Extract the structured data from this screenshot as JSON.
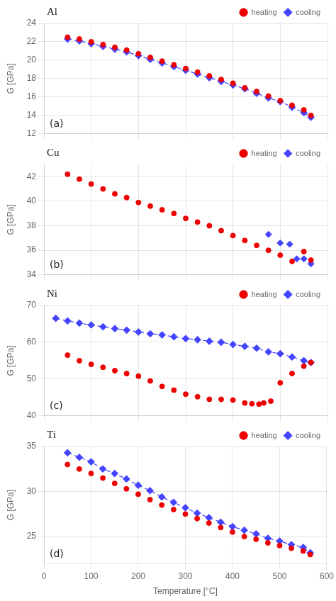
{
  "chart_data": [
    {
      "type": "scatter",
      "annotations": [
        "Al",
        "(a)"
      ],
      "ylabel": "G [GPa]",
      "xlim": [
        0,
        600
      ],
      "xticks": [
        0,
        100,
        200,
        300,
        400,
        500,
        600
      ],
      "ylim": [
        12,
        24
      ],
      "yticks": [
        12,
        14,
        16,
        18,
        20,
        22,
        24
      ],
      "grid": true,
      "legend": "upper right",
      "tick_labels": "y",
      "series": [
        {
          "name": "heating",
          "type": "scatter",
          "marker": "circle",
          "color": "#EE0000",
          "x": [
            50,
            75,
            100,
            125,
            150,
            175,
            200,
            225,
            250,
            275,
            300,
            325,
            350,
            375,
            400,
            425,
            450,
            475,
            500,
            525,
            550,
            565
          ],
          "values": [
            22.5,
            22.3,
            22.0,
            21.7,
            21.4,
            21.1,
            20.7,
            20.3,
            19.9,
            19.5,
            19.1,
            18.7,
            18.3,
            17.9,
            17.5,
            17.0,
            16.6,
            16.1,
            15.6,
            15.1,
            14.6,
            14.0
          ]
        },
        {
          "name": "cooling",
          "type": "line",
          "marker": "diamond",
          "line_style": "dashed",
          "color": "#4444FF",
          "x": [
            50,
            75,
            100,
            125,
            150,
            175,
            200,
            225,
            250,
            275,
            300,
            325,
            350,
            375,
            400,
            425,
            450,
            475,
            500,
            525,
            550,
            565
          ],
          "values": [
            22.3,
            22.1,
            21.8,
            21.5,
            21.2,
            20.9,
            20.5,
            20.1,
            19.7,
            19.3,
            18.9,
            18.5,
            18.1,
            17.7,
            17.3,
            16.9,
            16.4,
            15.9,
            15.5,
            14.9,
            14.3,
            13.8
          ]
        }
      ]
    },
    {
      "type": "scatter",
      "annotations": [
        "Cu",
        "(b)"
      ],
      "ylabel": "G [GPa]",
      "xlim": [
        0,
        600
      ],
      "xticks": [
        0,
        100,
        200,
        300,
        400,
        500,
        600
      ],
      "ylim": [
        34,
        43
      ],
      "yticks": [
        34,
        36,
        38,
        40,
        42
      ],
      "grid": true,
      "legend": "upper right",
      "tick_labels": "y",
      "series": [
        {
          "name": "heating",
          "type": "scatter",
          "marker": "circle",
          "color": "#EE0000",
          "x": [
            50,
            75,
            100,
            125,
            150,
            175,
            200,
            225,
            250,
            275,
            300,
            325,
            350,
            375,
            400,
            425,
            450,
            475,
            500,
            525,
            550,
            565
          ],
          "values": [
            42.2,
            41.8,
            41.4,
            41.0,
            40.6,
            40.3,
            39.9,
            39.6,
            39.3,
            39.0,
            38.6,
            38.3,
            38.0,
            37.6,
            37.2,
            36.8,
            36.4,
            36.0,
            35.6,
            35.1,
            35.9,
            35.2
          ]
        },
        {
          "name": "cooling",
          "type": "scatter",
          "marker": "diamond",
          "color": "#4444FF",
          "x": [
            475,
            500,
            520,
            535,
            550,
            565
          ],
          "values": [
            37.3,
            36.6,
            36.5,
            35.3,
            35.3,
            34.9
          ]
        }
      ]
    },
    {
      "type": "scatter",
      "annotations": [
        "Ni",
        "(c)"
      ],
      "ylabel": "G [GPa]",
      "xlim": [
        0,
        600
      ],
      "xticks": [
        0,
        100,
        200,
        300,
        400,
        500,
        600
      ],
      "ylim": [
        40,
        70
      ],
      "yticks": [
        40,
        50,
        60,
        70
      ],
      "grid": true,
      "legend": "upper right",
      "tick_labels": "y",
      "series": [
        {
          "name": "heating",
          "type": "scatter",
          "marker": "circle",
          "color": "#EE0000",
          "x": [
            50,
            75,
            100,
            125,
            150,
            175,
            200,
            225,
            250,
            275,
            300,
            325,
            350,
            375,
            400,
            425,
            440,
            455,
            465,
            480,
            500,
            525,
            550,
            565
          ],
          "values": [
            56.5,
            55.0,
            54.0,
            53.2,
            52.3,
            51.5,
            50.8,
            49.5,
            48.0,
            47.0,
            45.9,
            45.2,
            44.5,
            44.5,
            44.3,
            43.5,
            43.3,
            43.2,
            43.5,
            44.0,
            49.0,
            51.5,
            53.5,
            54.5
          ]
        },
        {
          "name": "cooling",
          "type": "line",
          "marker": "diamond",
          "line_style": "dashed",
          "color": "#4444FF",
          "x": [
            25,
            50,
            75,
            100,
            125,
            150,
            175,
            200,
            225,
            250,
            275,
            300,
            325,
            350,
            375,
            400,
            425,
            450,
            475,
            500,
            525,
            550,
            565
          ],
          "values": [
            66.5,
            65.8,
            65.2,
            64.7,
            64.2,
            63.7,
            63.3,
            62.8,
            62.3,
            62.0,
            61.5,
            61.0,
            60.7,
            60.3,
            60.0,
            59.4,
            58.9,
            58.4,
            57.4,
            56.9,
            56.0,
            55.0,
            54.5
          ]
        }
      ]
    },
    {
      "type": "scatter",
      "annotations": [
        "Ti",
        "(d)"
      ],
      "ylabel": "G [GPa]",
      "xlabel": "Temperature [°C]",
      "xlim": [
        0,
        600
      ],
      "xticks": [
        0,
        100,
        200,
        300,
        400,
        500,
        600
      ],
      "ylim": [
        22,
        35
      ],
      "yticks": [
        25,
        30,
        35
      ],
      "grid": true,
      "legend": "upper right",
      "series": [
        {
          "name": "heating",
          "type": "scatter",
          "marker": "circle",
          "color": "#EE0000",
          "x": [
            50,
            75,
            100,
            125,
            150,
            175,
            200,
            225,
            250,
            275,
            300,
            325,
            350,
            375,
            400,
            425,
            450,
            475,
            500,
            525,
            550,
            565
          ],
          "values": [
            33.0,
            32.5,
            32.0,
            31.5,
            30.9,
            30.3,
            29.7,
            29.1,
            28.5,
            28.0,
            27.5,
            27.0,
            26.5,
            26.0,
            25.5,
            25.0,
            24.7,
            24.3,
            24.0,
            23.7,
            23.4,
            23.0
          ]
        },
        {
          "name": "cooling",
          "type": "line",
          "marker": "diamond",
          "line_style": "dashed",
          "color": "#4444FF",
          "x": [
            50,
            75,
            100,
            125,
            150,
            175,
            200,
            225,
            250,
            275,
            300,
            325,
            350,
            375,
            400,
            425,
            450,
            475,
            500,
            525,
            550,
            565
          ],
          "values": [
            34.3,
            33.8,
            33.3,
            32.5,
            32.0,
            31.4,
            30.7,
            30.1,
            29.4,
            28.8,
            28.2,
            27.6,
            27.1,
            26.6,
            26.1,
            25.7,
            25.3,
            24.8,
            24.5,
            24.1,
            23.8,
            23.2
          ]
        }
      ]
    }
  ]
}
